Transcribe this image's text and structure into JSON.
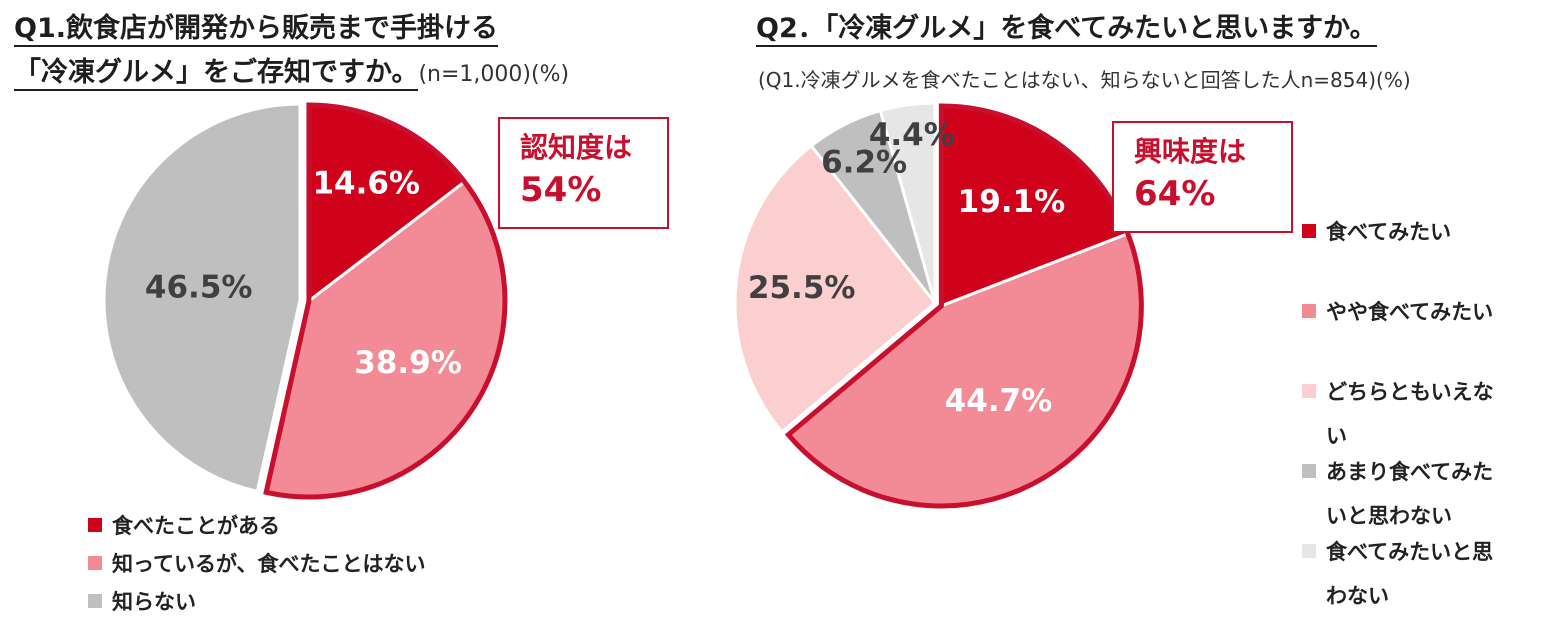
{
  "q1": {
    "title_line1": "Q1.飲食店が開発から販売まで手掛ける",
    "title_line2": "「冷凍グルメ」をご存知ですか。",
    "note": "(n=1,000)(%)",
    "callout": {
      "line1": "認知度は",
      "line2": "54%"
    }
  },
  "q2": {
    "title": "Q2．「冷凍グルメ」を食べてみたいと思いますか。",
    "note": "(Q1.冷凍グルメを食べたことはない、知らないと回答した人n=854)(%)",
    "callout": {
      "line1": "興味度は",
      "line2": "64%"
    }
  },
  "chart_data": [
    {
      "type": "pie",
      "title": "Q1.飲食店が開発から販売まで手掛ける「冷凍グルメ」をご存知ですか。",
      "unit": "%",
      "categories": [
        "食べたことがある",
        "知っているが、食べたことはない",
        "知らない"
      ],
      "values": [
        14.6,
        38.9,
        46.5
      ],
      "labels": [
        "14.6%",
        "38.9%",
        "46.5%"
      ],
      "colors": [
        "#d0021b",
        "#f28b95",
        "#bfbfbf"
      ],
      "label_colors": [
        "#ffffff",
        "#ffffff",
        "#404040"
      ],
      "legend": {
        "position": "bottom",
        "items": [
          "食べたことがある",
          "知っているが、食べたことはない",
          "知らない"
        ]
      },
      "highlight_outline": "#c8102e",
      "highlighted_slices": [
        0,
        1
      ]
    },
    {
      "type": "pie",
      "title": "Q2．「冷凍グルメ」を食べてみたいと思いますか。",
      "unit": "%",
      "categories": [
        "食べてみたい",
        "やや食べてみたい",
        "どちらともいえない",
        "あまり食べてみたいと思わない",
        "食べてみたいと思わない"
      ],
      "values": [
        19.1,
        44.7,
        25.5,
        6.2,
        4.4
      ],
      "labels": [
        "19.1%",
        "44.7%",
        "25.5%",
        "6.2%",
        "4.4%"
      ],
      "colors": [
        "#d0021b",
        "#f28b95",
        "#fbcfcf",
        "#bfbfbf",
        "#e6e6e6"
      ],
      "label_colors": [
        "#ffffff",
        "#ffffff",
        "#404040",
        "#404040",
        "#404040"
      ],
      "legend": {
        "position": "right",
        "items": [
          [
            "食べてみたい"
          ],
          [
            "やや食べてみたい"
          ],
          [
            "どちらともいえな",
            "い"
          ],
          [
            "あまり食べてみた",
            "いと思わない"
          ],
          [
            "食べてみたいと思",
            "わない"
          ]
        ]
      },
      "highlight_outline": "#c8102e",
      "highlighted_slices": [
        0,
        1
      ]
    }
  ]
}
